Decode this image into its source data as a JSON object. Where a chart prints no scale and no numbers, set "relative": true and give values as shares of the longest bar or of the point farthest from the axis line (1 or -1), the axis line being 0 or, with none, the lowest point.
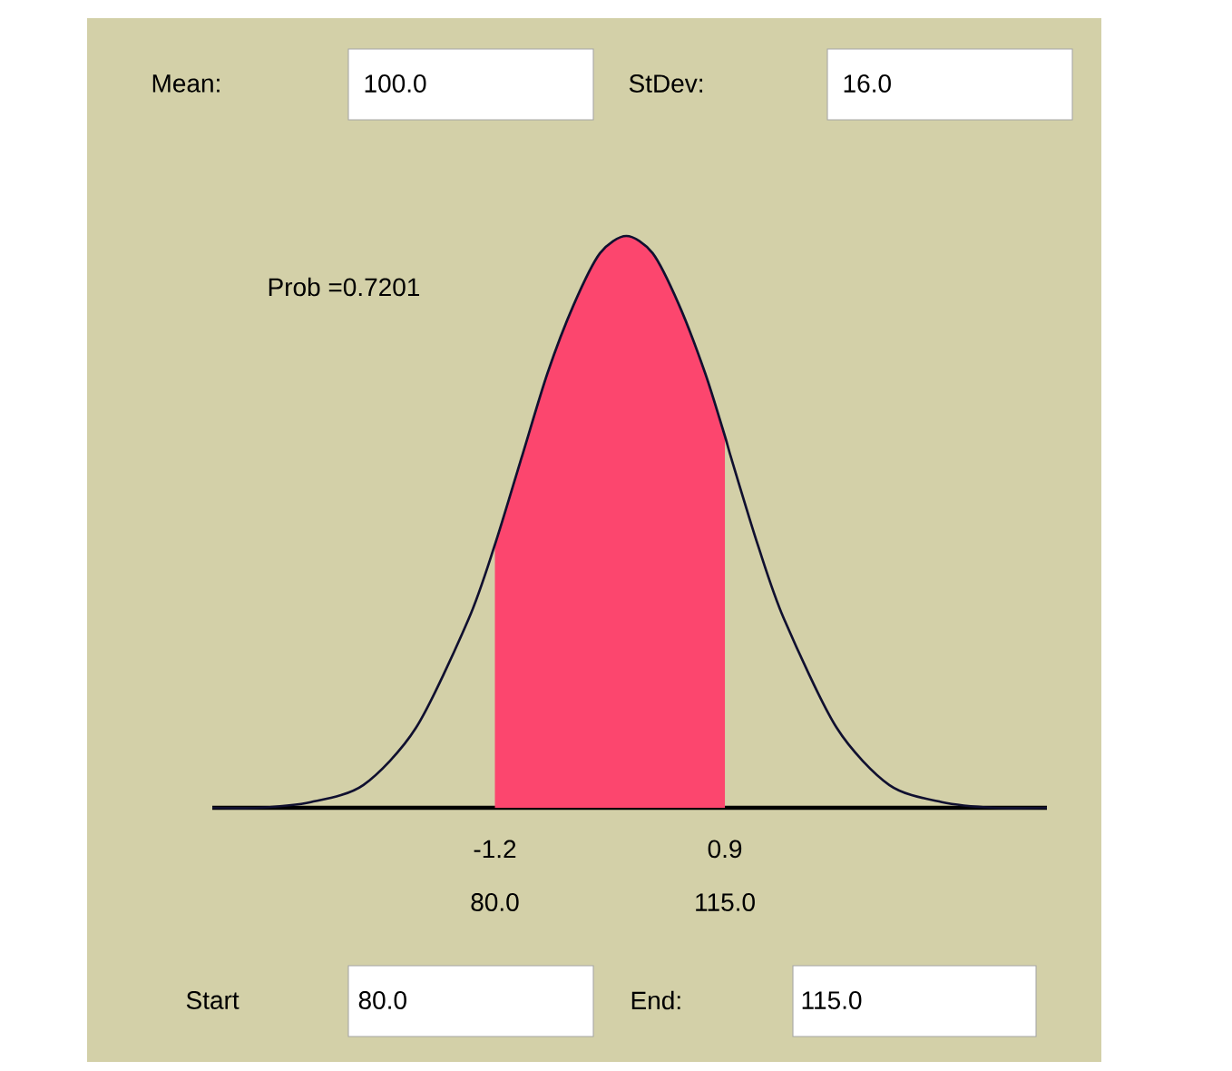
{
  "chart_data": {
    "type": "line",
    "relative": true,
    "xlim": [
      37,
      164
    ],
    "xticks": [
      {
        "value": 80,
        "label": "80.0"
      },
      {
        "value": 115,
        "label": "115.0"
      }
    ],
    "series": [
      {
        "type": "area",
        "color": "#fc466e",
        "x": [
          80,
          84,
          88,
          92,
          96,
          100,
          104,
          108,
          112,
          115
        ],
        "values": [
          0.46,
          0.61,
          0.76,
          0.88,
          0.97,
          1,
          0.97,
          0.88,
          0.76,
          0.65
        ]
      },
      {
        "color": "#101030",
        "x": [
          37,
          44,
          52,
          60,
          68,
          76,
          80,
          84,
          88,
          92,
          96,
          100,
          104,
          108,
          112,
          115,
          116,
          120,
          124,
          132,
          140,
          148,
          156,
          164
        ],
        "values": [
          0,
          0,
          0.01,
          0.04,
          0.14,
          0.33,
          0.46,
          0.61,
          0.76,
          0.88,
          0.97,
          1,
          0.97,
          0.88,
          0.76,
          0.65,
          0.61,
          0.46,
          0.33,
          0.14,
          0.04,
          0.01,
          0,
          0
        ]
      }
    ],
    "annotations": [
      "Prob =0.7201",
      "Mean:",
      "100.0",
      "StDev:",
      "16.0",
      "Start",
      "80.0",
      "End:",
      "115.0",
      {
        "text": "-1.2",
        "x": 80,
        "y": 0
      },
      {
        "text": "0.9",
        "x": 115,
        "y": 0
      }
    ]
  }
}
